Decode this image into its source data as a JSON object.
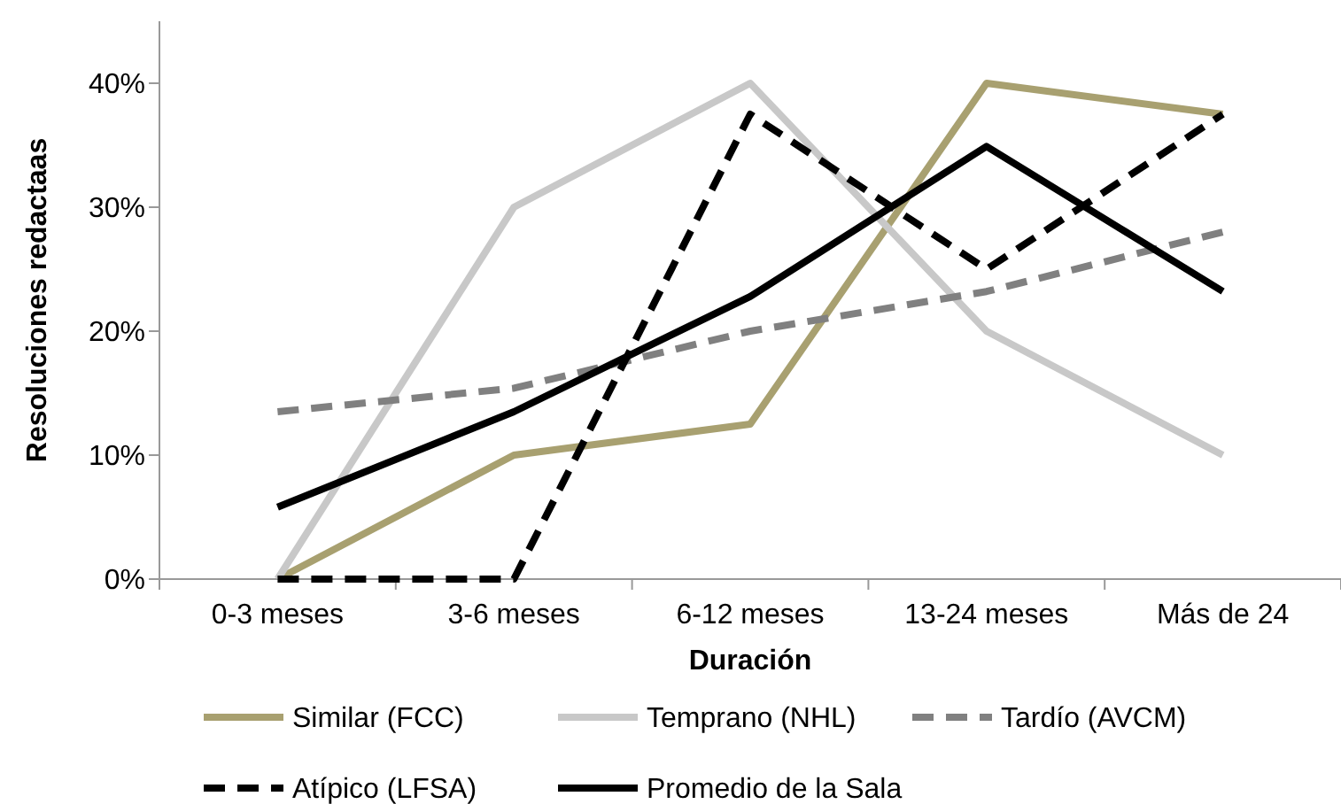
{
  "chart_data": {
    "type": "line",
    "xlabel": "Duración",
    "ylabel": "Resoluciones redactaas",
    "categories": [
      "0-3 meses",
      "3-6 meses",
      "6-12 meses",
      "13-24 meses",
      "Más de 24"
    ],
    "ylim": [
      0,
      45
    ],
    "yticks": [
      {
        "value": 0,
        "label": "0%"
      },
      {
        "value": 10,
        "label": "10%"
      },
      {
        "value": 20,
        "label": "20%"
      },
      {
        "value": 30,
        "label": "30%"
      },
      {
        "value": 40,
        "label": "40%"
      }
    ],
    "grid": false,
    "legend": "bottom",
    "marker": "none",
    "series": [
      {
        "name": "Similar (FCC)",
        "color": "#a8a070",
        "line_style": "solid",
        "values": [
          0,
          10,
          12.5,
          40,
          37.5
        ]
      },
      {
        "name": "Temprano (NHL)",
        "color": "#c8c8c8",
        "line_style": "solid",
        "values": [
          0,
          30,
          40,
          20,
          10
        ]
      },
      {
        "name": "Tardío (AVCM)",
        "color": "#808080",
        "line_style": "dashed",
        "values": [
          13.5,
          15.4,
          20,
          23.2,
          28
        ]
      },
      {
        "name": "Atípico (LFSA)",
        "color": "#000000",
        "line_style": "dashed",
        "values": [
          0,
          0,
          37.5,
          25,
          37.5
        ]
      },
      {
        "name": "Promedio de la Sala",
        "color": "#000000",
        "line_style": "solid",
        "values": [
          5.8,
          13.5,
          22.8,
          34.9,
          23.2
        ]
      }
    ]
  }
}
